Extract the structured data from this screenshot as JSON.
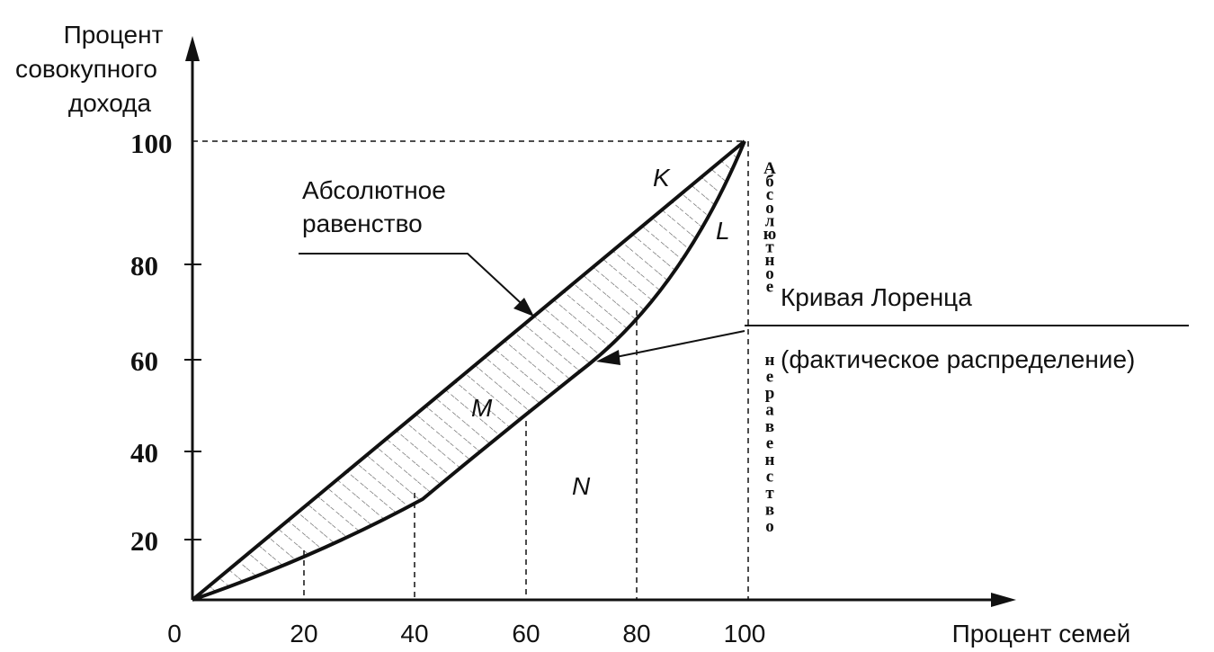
{
  "y_axis_title": [
    "Процент",
    "совокупного",
    "дохода"
  ],
  "x_axis_title": "Процент семей",
  "origin_label": "0",
  "x_ticks": [
    "20",
    "40",
    "60",
    "80",
    "100"
  ],
  "y_ticks": [
    "20",
    "40",
    "60",
    "80",
    "100"
  ],
  "equality_label": [
    "Абсолютное",
    "равенство"
  ],
  "lorenz_label": [
    "Кривая Лоренца",
    "(фактическое распределение)"
  ],
  "vertical_label_top": "Абсолютное",
  "vertical_label_bottom": "неравенство",
  "point_labels": {
    "K": "K",
    "L": "L",
    "M": "M",
    "N": "N"
  },
  "colors": {
    "ink": "#111111",
    "hatch": "#555555",
    "background": "#ffffff"
  }
}
